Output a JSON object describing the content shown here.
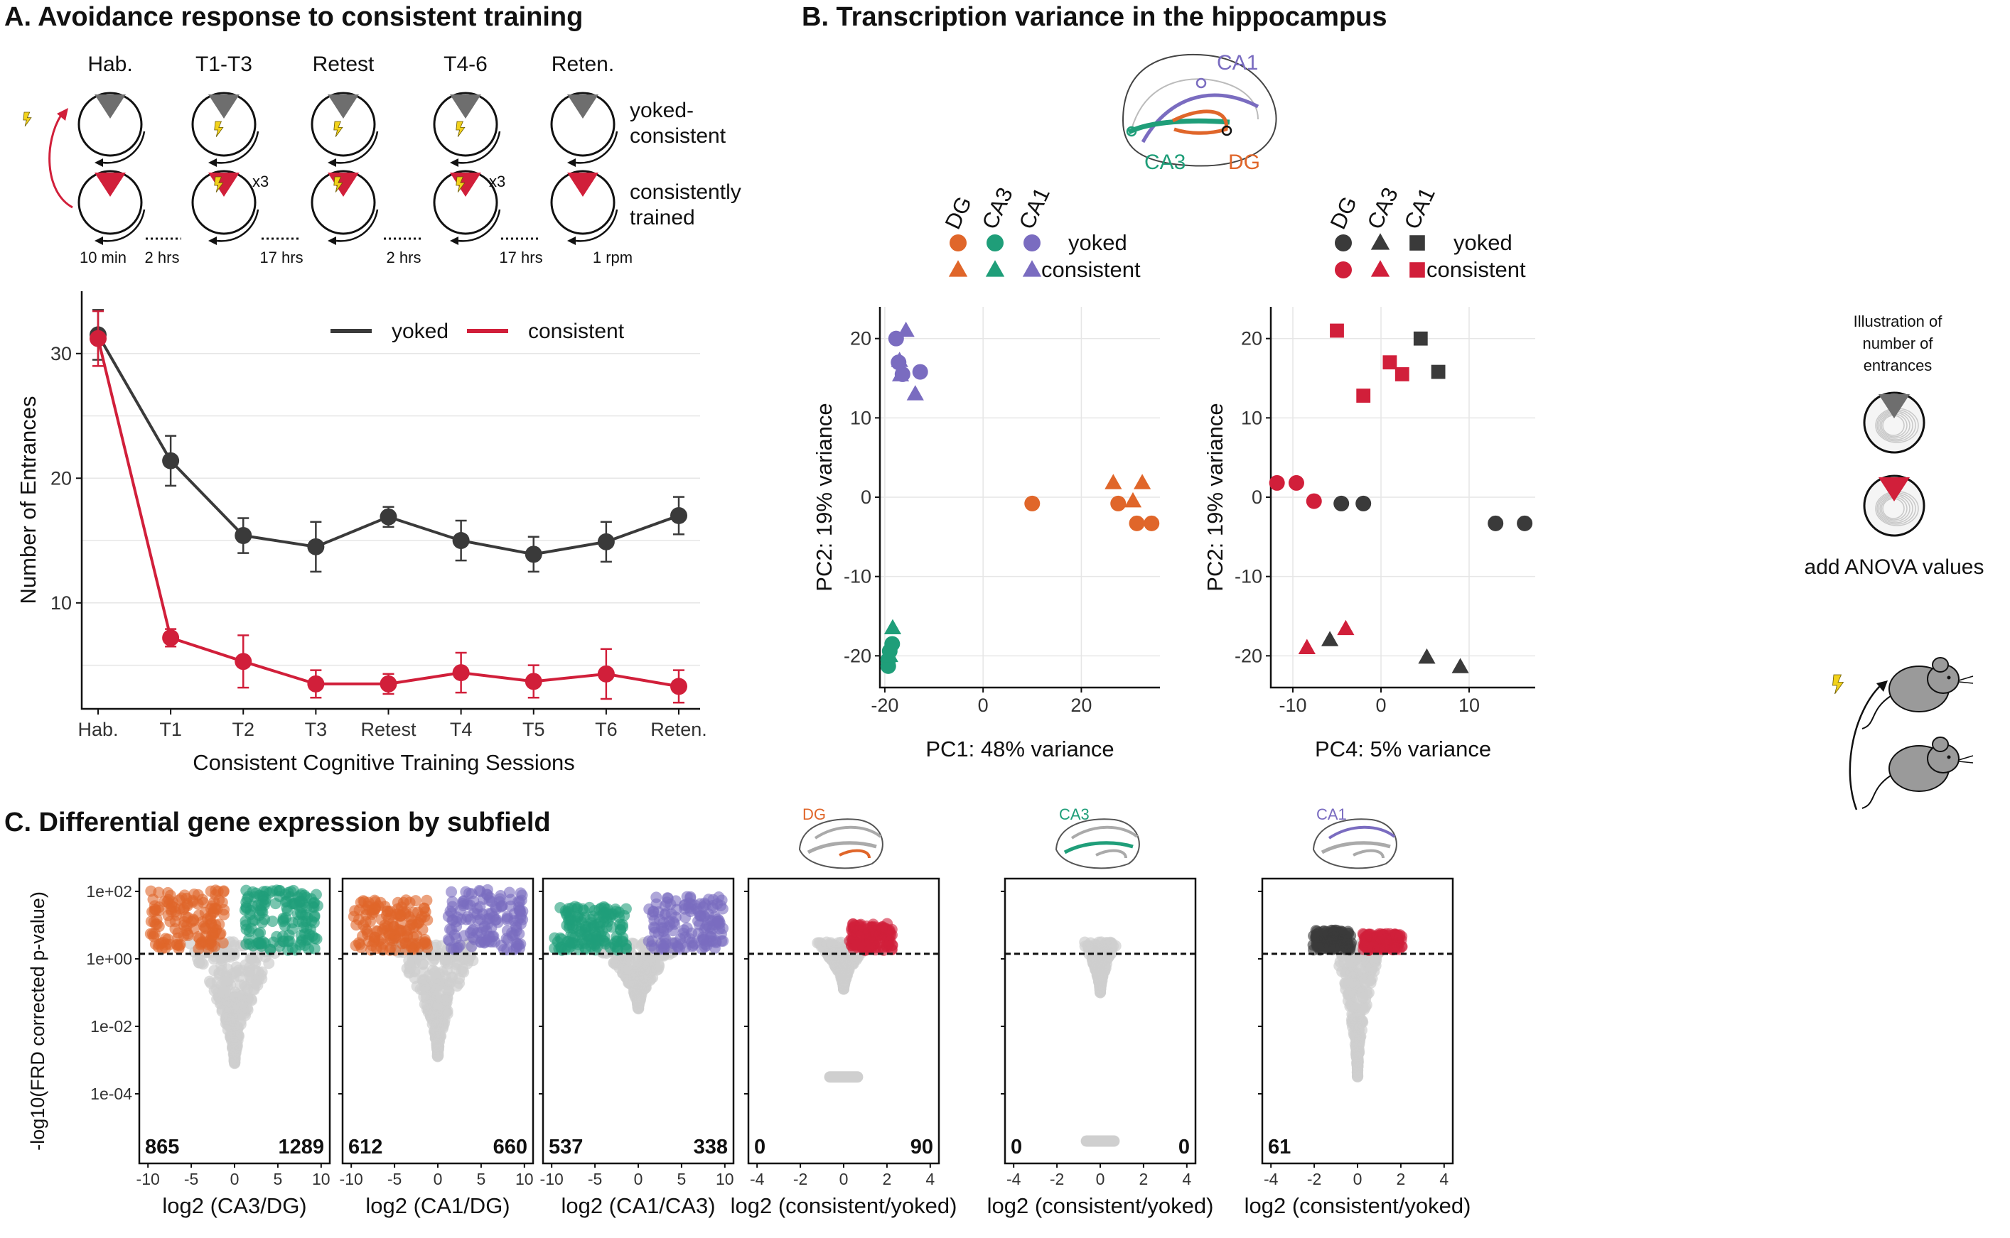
{
  "figure": {
    "panel_a_title": "A. Avoidance response to consistent training",
    "panel_b_title": "B. Transcription variance in the hippocampus",
    "panel_c_title": "C. Differential gene expression by subfield"
  },
  "schematic_a": {
    "session_labels": [
      "Hab.",
      "T1-T3",
      "Retest",
      "T4-6",
      "Reten."
    ],
    "row_labels": {
      "yoked": "yoked-\nconsistent",
      "trained": "consistently\ntrained"
    },
    "multiplier": "x3",
    "durations": [
      "10 min",
      "2 hrs",
      "17 hrs",
      "2 hrs",
      "17 hrs",
      "1 rpm"
    ]
  },
  "schematic_b": {
    "regions": [
      "CA1",
      "CA3",
      "DG"
    ]
  },
  "colors": {
    "dg": "#e0662a",
    "ca3": "#1f9e79",
    "ca1": "#7a6cc0",
    "yoked": "#3a3a3a",
    "consistent": "#d11f3a",
    "gray_point": "#cfcfcf"
  },
  "sidebar": {
    "illustration_label": "Illustration of\nnumber of\nentrances",
    "anova_note": "add ANOVA values"
  },
  "chart_data": [
    {
      "id": "A",
      "type": "line",
      "title": "",
      "xlabel": "Consistent Cognitive Training Sessions",
      "ylabel": "Number of Entrances",
      "categories": [
        "Hab.",
        "T1",
        "T2",
        "T3",
        "Retest",
        "T4",
        "T5",
        "T6",
        "Reten."
      ],
      "ylim": [
        1.5,
        35
      ],
      "yticks": [
        10,
        20,
        30
      ],
      "legend_position": "top-right",
      "series": [
        {
          "name": "yoked",
          "color": "#3a3a3a",
          "values": [
            31.5,
            21.4,
            15.4,
            14.5,
            16.9,
            15.0,
            13.9,
            14.9,
            17.0
          ],
          "errors": [
            2.0,
            2.0,
            1.4,
            2.0,
            0.8,
            1.6,
            1.4,
            1.6,
            1.5
          ]
        },
        {
          "name": "consistent",
          "color": "#d11f3a",
          "values": [
            31.2,
            7.2,
            5.3,
            3.5,
            3.5,
            4.4,
            3.7,
            4.3,
            3.3
          ],
          "errors": [
            2.2,
            0.7,
            2.1,
            1.1,
            0.8,
            1.6,
            1.3,
            2.0,
            1.3
          ]
        }
      ]
    },
    {
      "id": "B1",
      "type": "scatter",
      "xlabel": "PC1: 48% variance",
      "ylabel": "PC2: 19% variance",
      "xlim": [
        -21,
        36
      ],
      "ylim": [
        -24,
        24
      ],
      "xticks": [
        -20,
        0,
        20
      ],
      "yticks": [
        -20,
        -10,
        0,
        10,
        20
      ],
      "legend_columns": [
        "DG",
        "CA3",
        "CA1"
      ],
      "legend_rows": [
        "yoked",
        "consistent"
      ],
      "points": [
        {
          "x": -17.7,
          "y": 20.0,
          "group": "CA1",
          "treatment": "yoked"
        },
        {
          "x": -17.2,
          "y": 17.0,
          "group": "CA1",
          "treatment": "yoked"
        },
        {
          "x": -16.4,
          "y": 15.5,
          "group": "CA1",
          "treatment": "yoked"
        },
        {
          "x": -12.8,
          "y": 15.8,
          "group": "CA1",
          "treatment": "yoked"
        },
        {
          "x": -15.7,
          "y": 21.0,
          "group": "CA1",
          "treatment": "consistent"
        },
        {
          "x": -17.0,
          "y": 17.2,
          "group": "CA1",
          "treatment": "consistent"
        },
        {
          "x": -16.8,
          "y": 15.4,
          "group": "CA1",
          "treatment": "consistent"
        },
        {
          "x": -13.8,
          "y": 13.0,
          "group": "CA1",
          "treatment": "consistent"
        },
        {
          "x": 10.0,
          "y": -0.8,
          "group": "DG",
          "treatment": "yoked"
        },
        {
          "x": 27.5,
          "y": -0.8,
          "group": "DG",
          "treatment": "yoked"
        },
        {
          "x": 31.3,
          "y": -3.3,
          "group": "DG",
          "treatment": "yoked"
        },
        {
          "x": 34.3,
          "y": -3.3,
          "group": "DG",
          "treatment": "yoked"
        },
        {
          "x": 26.5,
          "y": 1.8,
          "group": "DG",
          "treatment": "consistent"
        },
        {
          "x": 30.5,
          "y": -0.5,
          "group": "DG",
          "treatment": "consistent"
        },
        {
          "x": 32.4,
          "y": 1.8,
          "group": "DG",
          "treatment": "consistent"
        },
        {
          "x": -18.5,
          "y": -18.5,
          "group": "CA3",
          "treatment": "yoked"
        },
        {
          "x": -19.0,
          "y": -19.4,
          "group": "CA3",
          "treatment": "yoked"
        },
        {
          "x": -19.3,
          "y": -20.5,
          "group": "CA3",
          "treatment": "yoked"
        },
        {
          "x": -19.3,
          "y": -21.3,
          "group": "CA3",
          "treatment": "yoked"
        },
        {
          "x": -18.4,
          "y": -16.5,
          "group": "CA3",
          "treatment": "consistent"
        },
        {
          "x": -19.0,
          "y": -20.0,
          "group": "CA3",
          "treatment": "consistent"
        }
      ]
    },
    {
      "id": "B2",
      "type": "scatter",
      "xlabel": "PC4: 5% variance",
      "ylabel": "PC2: 19% variance",
      "xlim": [
        -12.5,
        17.5
      ],
      "ylim": [
        -24,
        24
      ],
      "xticks": [
        -10,
        0,
        10
      ],
      "yticks": [
        -20,
        -10,
        0,
        10,
        20
      ],
      "legend_columns": [
        "DG",
        "CA3",
        "CA1"
      ],
      "legend_rows": [
        "yoked",
        "consistent"
      ],
      "points": [
        {
          "x": -11.8,
          "y": 1.8,
          "group": "DG",
          "treatment": "consistent"
        },
        {
          "x": -9.6,
          "y": 1.8,
          "group": "DG",
          "treatment": "consistent"
        },
        {
          "x": -7.6,
          "y": -0.5,
          "group": "DG",
          "treatment": "consistent"
        },
        {
          "x": -4.5,
          "y": -0.8,
          "group": "DG",
          "treatment": "yoked"
        },
        {
          "x": -2.0,
          "y": -0.8,
          "group": "DG",
          "treatment": "yoked"
        },
        {
          "x": 13.0,
          "y": -3.3,
          "group": "DG",
          "treatment": "yoked"
        },
        {
          "x": 16.3,
          "y": -3.3,
          "group": "DG",
          "treatment": "yoked"
        },
        {
          "x": -8.4,
          "y": -19.0,
          "group": "CA3",
          "treatment": "consistent"
        },
        {
          "x": -4.0,
          "y": -16.6,
          "group": "CA3",
          "treatment": "consistent"
        },
        {
          "x": -5.8,
          "y": -18.0,
          "group": "CA3",
          "treatment": "yoked"
        },
        {
          "x": 5.2,
          "y": -20.2,
          "group": "CA3",
          "treatment": "yoked"
        },
        {
          "x": 9.0,
          "y": -21.4,
          "group": "CA3",
          "treatment": "yoked"
        },
        {
          "x": -5.0,
          "y": 21.0,
          "group": "CA1",
          "treatment": "consistent"
        },
        {
          "x": 1.0,
          "y": 17.0,
          "group": "CA1",
          "treatment": "consistent"
        },
        {
          "x": 2.4,
          "y": 15.5,
          "group": "CA1",
          "treatment": "consistent"
        },
        {
          "x": -2.0,
          "y": 12.8,
          "group": "CA1",
          "treatment": "consistent"
        },
        {
          "x": 4.5,
          "y": 20.0,
          "group": "CA1",
          "treatment": "yoked"
        },
        {
          "x": 6.5,
          "y": 15.8,
          "group": "CA1",
          "treatment": "yoked"
        }
      ]
    },
    {
      "id": "C",
      "type": "scatter",
      "ylabel": "-log10(FRD corrected p-value)",
      "yscale": "log",
      "yticks": [
        "1e+02",
        "1e+00",
        "1e-02",
        "1e-04"
      ],
      "threshold": 0.05,
      "panels": [
        {
          "xlabel": "log2 (CA3/DG)",
          "xlim": [
            -11,
            11
          ],
          "xticks": [
            -10,
            -5,
            0,
            5,
            10
          ],
          "left_count": "865",
          "right_count": "1289",
          "left_color": "#e0662a",
          "right_color": "#1f9e79",
          "max_abs_x": 10,
          "top_left": 1.8,
          "top_right": 1.8,
          "gray_depth": -3.3
        },
        {
          "xlabel": "log2 (CA1/DG)",
          "xlim": [
            -11,
            11
          ],
          "xticks": [
            -10,
            -5,
            0,
            5,
            10
          ],
          "left_count": "612",
          "right_count": "660",
          "left_color": "#e0662a",
          "right_color": "#7a6cc0",
          "max_abs_x": 10,
          "top_left": 1.5,
          "top_right": 1.8,
          "gray_depth": -3.0
        },
        {
          "xlabel": "log2 (CA1/CA3)",
          "xlim": [
            -11,
            11
          ],
          "xticks": [
            -10,
            -5,
            0,
            5,
            10
          ],
          "left_count": "537",
          "right_count": "338",
          "left_color": "#1f9e79",
          "right_color": "#7a6cc0",
          "max_abs_x": 10,
          "top_left": 1.3,
          "top_right": 1.6,
          "gray_depth": -1.6
        },
        {
          "xlabel": "log2 (consistent/yoked)",
          "xlim": [
            -4.4,
            4.4
          ],
          "xticks": [
            -4,
            -2,
            0,
            2,
            4
          ],
          "left_count": "0",
          "right_count": "90",
          "left_color": "#3a3a3a",
          "right_color": "#d11f3a",
          "max_abs_x": 2.3,
          "top_left": 0,
          "top_right": 0.8,
          "gray_depth": -1.0,
          "bottom_band": -3.5,
          "inset_label": "DG"
        },
        {
          "xlabel": "log2 (consistent/yoked)",
          "xlim": [
            -4.4,
            4.4
          ],
          "xticks": [
            -4,
            -2,
            0,
            2,
            4
          ],
          "left_count": "0",
          "right_count": "0",
          "left_color": "#3a3a3a",
          "right_color": "#d11f3a",
          "max_abs_x": 1.5,
          "top_left": 0,
          "top_right": 0,
          "gray_depth": -1.1,
          "bottom_band": -5.4,
          "inset_label": "CA3"
        },
        {
          "xlabel": "log2 (consistent/yoked)",
          "xlim": [
            -4.4,
            4.4
          ],
          "xticks": [
            -4,
            -2,
            0,
            2,
            4
          ],
          "left_count": "61",
          "right_count": "",
          "left_color": "#3a3a3a",
          "right_color": "#d11f3a",
          "max_abs_x": 2.1,
          "top_left": 0.6,
          "top_right": 0.5,
          "gray_depth": -3.6,
          "inset_label": "CA1"
        }
      ]
    }
  ]
}
